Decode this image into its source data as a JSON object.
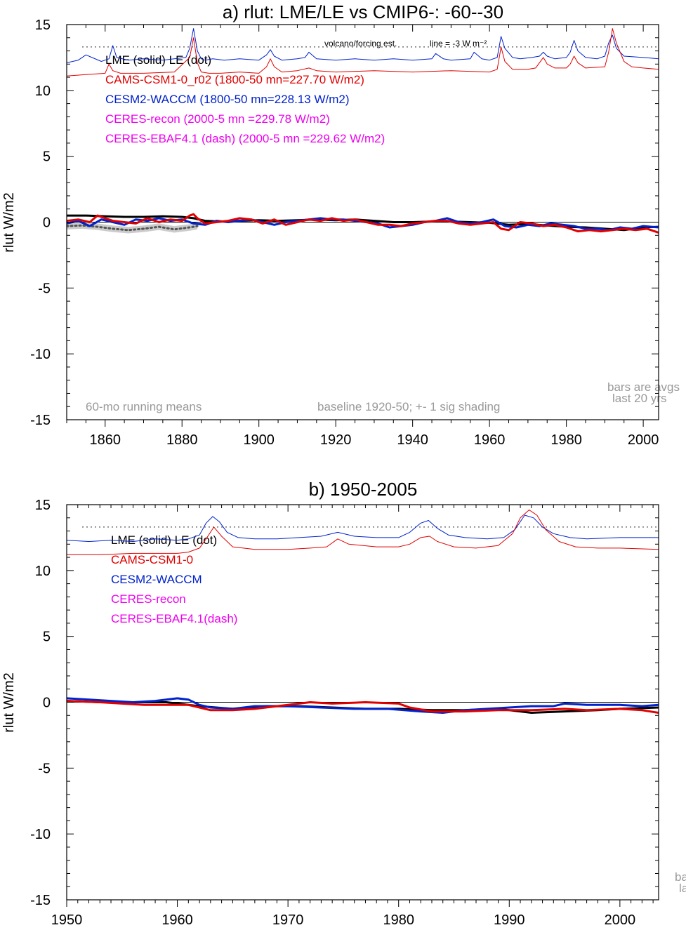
{
  "chart_data": [
    {
      "type": "line",
      "title": "a) rlut: LME/LE vs CMIP6-: -60--30",
      "ylabel": "rlut W/m2",
      "xlim": [
        1850,
        2004
      ],
      "ylim": [
        -15,
        15
      ],
      "xticks": [
        1860,
        1880,
        1900,
        1920,
        1940,
        1960,
        1980,
        2000
      ],
      "yticks": [
        -15,
        -10,
        -5,
        0,
        5,
        10,
        15
      ],
      "grid": false,
      "legend": [
        {
          "text": "LME (solid)   LE (dot)",
          "color": "#000000"
        },
        {
          "text": "CAMS-CSM1-0_r02 (1800-50 mn=227.70 W/m2)",
          "color": "#e00000"
        },
        {
          "text": "CESM2-WACCM (1800-50 mn=228.13 W/m2)",
          "color": "#0022cc"
        },
        {
          "text": "CERES-recon (2000-5 mn =229.78 W/m2)",
          "color": "#ee00ee"
        },
        {
          "text": "CERES-EBAF4.1 (dash) (2000-5 mn =229.62 W/m2)",
          "color": "#ee00ee"
        }
      ],
      "annotations": {
        "volcano_label": "volcano/forcing est.",
        "line_label": "line = -3 W m⁻²",
        "bottom_left": "60-mo running means",
        "bottom_center": "baseline 1920-50; +- 1 sig shading",
        "bars_1": "bars are avgs",
        "bars_2": "last 20 yrs"
      },
      "dotted_ref": 13.3,
      "series": [
        {
          "name": "CESM2-WACCM",
          "role": "forcing",
          "color": "#0022cc",
          "width": 1,
          "x": [
            1850,
            1853,
            1855,
            1859,
            1861,
            1862,
            1863,
            1866,
            1870,
            1875,
            1878,
            1881,
            1882,
            1883,
            1884,
            1885,
            1886,
            1888,
            1891,
            1895,
            1900,
            1902,
            1903,
            1904,
            1906,
            1910,
            1912,
            1913,
            1915,
            1920,
            1925,
            1930,
            1935,
            1940,
            1945,
            1946,
            1948,
            1950,
            1955,
            1956,
            1958,
            1960,
            1962,
            1963,
            1964,
            1966,
            1968,
            1971,
            1973,
            1974,
            1975,
            1977,
            1980,
            1981,
            1982,
            1983,
            1985,
            1988,
            1990,
            1991,
            1992,
            1993,
            1995,
            2000,
            2004
          ],
          "y": [
            12.1,
            12.3,
            12.7,
            12.2,
            12.4,
            13.4,
            12.5,
            12.3,
            12.4,
            12.3,
            12.4,
            12.5,
            13.2,
            14.7,
            13.0,
            12.4,
            12.3,
            12.4,
            12.3,
            12.4,
            12.3,
            12.7,
            13.1,
            12.6,
            12.3,
            12.4,
            12.5,
            12.9,
            12.4,
            12.3,
            12.4,
            12.3,
            12.4,
            12.3,
            12.4,
            12.8,
            12.4,
            12.3,
            12.4,
            12.9,
            12.4,
            12.3,
            12.5,
            14.1,
            13.2,
            12.5,
            12.4,
            12.5,
            12.6,
            12.9,
            12.6,
            12.4,
            12.5,
            12.9,
            13.8,
            13.0,
            12.5,
            12.4,
            12.6,
            13.6,
            14.2,
            13.2,
            12.6,
            12.5,
            12.4
          ]
        },
        {
          "name": "CAMS-CSM1-0",
          "role": "forcing",
          "color": "#e00000",
          "width": 1,
          "x": [
            1850,
            1855,
            1860,
            1861,
            1862,
            1864,
            1870,
            1878,
            1882,
            1883,
            1884,
            1885,
            1887,
            1890,
            1895,
            1900,
            1902,
            1903,
            1904,
            1906,
            1910,
            1913,
            1915,
            1920,
            1930,
            1940,
            1950,
            1960,
            1962,
            1963,
            1964,
            1966,
            1970,
            1972,
            1973,
            1974,
            1975,
            1977,
            1980,
            1981,
            1982,
            1983,
            1985,
            1990,
            1991,
            1992,
            1993,
            1995,
            1997,
            2000,
            2004
          ],
          "y": [
            11.1,
            11.2,
            11.3,
            12.0,
            11.5,
            11.3,
            11.3,
            11.4,
            12.5,
            14.0,
            12.1,
            11.4,
            11.3,
            11.3,
            11.4,
            11.3,
            11.8,
            12.4,
            11.8,
            11.4,
            11.5,
            11.7,
            11.5,
            11.4,
            11.5,
            11.4,
            11.5,
            11.4,
            11.6,
            13.3,
            12.2,
            11.6,
            11.6,
            11.7,
            12.1,
            12.5,
            12.0,
            11.7,
            11.7,
            12.0,
            12.6,
            12.1,
            11.7,
            11.8,
            12.9,
            14.7,
            13.6,
            12.2,
            11.8,
            11.7,
            11.6
          ]
        },
        {
          "name": "LE",
          "role": "anomaly",
          "color": "#555555",
          "width": 3,
          "dash": "2,4",
          "shade": true,
          "x": [
            1850,
            1854,
            1858,
            1862,
            1866,
            1870,
            1874,
            1878,
            1882,
            1884
          ],
          "y": [
            -0.3,
            -0.25,
            -0.35,
            -0.5,
            -0.6,
            -0.5,
            -0.35,
            -0.55,
            -0.4,
            -0.3
          ]
        },
        {
          "name": "LME",
          "role": "anomaly",
          "color": "#000000",
          "width": 3,
          "x": [
            1850,
            1855,
            1860,
            1865,
            1870,
            1875,
            1880,
            1883,
            1886,
            1890,
            1895,
            1900,
            1905,
            1910,
            1915,
            1920,
            1925,
            1930,
            1935,
            1940,
            1945,
            1950,
            1955,
            1960,
            1965,
            1970,
            1975,
            1980,
            1985,
            1990,
            1995,
            2000,
            2004
          ],
          "y": [
            0.5,
            0.5,
            0.45,
            0.4,
            0.4,
            0.45,
            0.4,
            0.3,
            0.1,
            0.05,
            0.1,
            0.15,
            0.1,
            0.15,
            0.2,
            0.15,
            0.2,
            0.1,
            0.0,
            0.0,
            0.05,
            0.05,
            0.0,
            -0.05,
            -0.2,
            -0.15,
            -0.25,
            -0.35,
            -0.4,
            -0.5,
            -0.6,
            -0.4,
            -0.35
          ]
        },
        {
          "name": "CESM2-WACCM",
          "role": "anomaly",
          "color": "#0022cc",
          "width": 3,
          "x": [
            1850,
            1853,
            1856,
            1859,
            1862,
            1865,
            1868,
            1871,
            1874,
            1877,
            1880,
            1883,
            1886,
            1889,
            1892,
            1895,
            1898,
            1901,
            1904,
            1907,
            1910,
            1913,
            1916,
            1919,
            1922,
            1925,
            1928,
            1931,
            1934,
            1937,
            1940,
            1943,
            1946,
            1949,
            1952,
            1955,
            1958,
            1961,
            1964,
            1967,
            1970,
            1973,
            1976,
            1979,
            1982,
            1985,
            1988,
            1991,
            1994,
            1997,
            2000,
            2004
          ],
          "y": [
            -0.1,
            0.1,
            -0.3,
            0.2,
            0.0,
            -0.2,
            0.2,
            0.1,
            0.3,
            0.1,
            0.2,
            -0.1,
            -0.2,
            0.1,
            0.0,
            0.1,
            0.2,
            0.0,
            -0.2,
            0.0,
            0.1,
            0.2,
            0.3,
            0.2,
            0.2,
            0.1,
            0.0,
            -0.1,
            -0.4,
            -0.3,
            -0.2,
            0.0,
            0.1,
            0.3,
            0.0,
            -0.1,
            0.0,
            0.2,
            -0.3,
            -0.4,
            -0.2,
            -0.3,
            -0.1,
            -0.2,
            -0.3,
            -0.5,
            -0.5,
            -0.6,
            -0.4,
            -0.5,
            -0.3,
            -0.4
          ]
        },
        {
          "name": "CAMS-CSM1-0",
          "role": "anomaly",
          "color": "#e00000",
          "width": 3,
          "x": [
            1850,
            1853,
            1856,
            1858,
            1860,
            1862,
            1865,
            1868,
            1871,
            1874,
            1877,
            1880,
            1882,
            1883,
            1884,
            1886,
            1889,
            1892,
            1895,
            1898,
            1901,
            1904,
            1907,
            1910,
            1913,
            1916,
            1919,
            1922,
            1925,
            1928,
            1931,
            1934,
            1937,
            1940,
            1943,
            1946,
            1949,
            1952,
            1955,
            1958,
            1961,
            1963,
            1965,
            1968,
            1971,
            1974,
            1977,
            1980,
            1983,
            1986,
            1989,
            1992,
            1995,
            1998,
            2001,
            2004
          ],
          "y": [
            0.1,
            0.2,
            0.0,
            0.5,
            0.3,
            0.1,
            0.0,
            -0.1,
            0.3,
            0.0,
            0.2,
            0.1,
            0.5,
            0.6,
            0.3,
            -0.1,
            0.0,
            0.1,
            0.3,
            0.2,
            -0.1,
            0.2,
            -0.2,
            0.0,
            0.2,
            0.1,
            0.3,
            0.1,
            0.2,
            0.0,
            -0.2,
            -0.2,
            -0.3,
            -0.1,
            0.0,
            0.1,
            0.1,
            -0.1,
            -0.2,
            -0.1,
            0.0,
            -0.5,
            -0.6,
            0.0,
            -0.1,
            -0.3,
            -0.2,
            -0.4,
            -0.7,
            -0.6,
            -0.7,
            -0.6,
            -0.5,
            -0.6,
            -0.5,
            -0.8
          ]
        }
      ]
    },
    {
      "type": "line",
      "title": "b) 1950-2005",
      "ylabel": "rlut W/m2",
      "xlim": [
        1950,
        2003.5
      ],
      "ylim": [
        -15,
        15
      ],
      "xticks": [
        1950,
        1960,
        1970,
        1980,
        1990,
        2000
      ],
      "yticks": [
        -15,
        -10,
        -5,
        0,
        5,
        10,
        15
      ],
      "grid": false,
      "legend": [
        {
          "text": "LME (solid)      LE (dot)",
          "color": "#000000"
        },
        {
          "text": "CAMS-CSM1-0",
          "color": "#e00000"
        },
        {
          "text": "CESM2-WACCM",
          "color": "#0022cc"
        },
        {
          "text": "CERES-recon",
          "color": "#ee00ee"
        },
        {
          "text": "CERES-EBAF4.1(dash)",
          "color": "#ee00ee"
        }
      ],
      "annotations": {
        "bars_1": "ba",
        "bars_2": "la"
      },
      "dotted_ref": 13.3,
      "series": [
        {
          "name": "CESM2-WACCM",
          "role": "forcing",
          "color": "#0022cc",
          "width": 1,
          "x": [
            1950,
            1952,
            1954,
            1956,
            1958,
            1960,
            1961,
            1962,
            1962.6,
            1963.2,
            1963.8,
            1964.5,
            1965.5,
            1967,
            1969,
            1971,
            1973,
            1974.5,
            1976,
            1978,
            1980,
            1981,
            1982,
            1982.7,
            1983.5,
            1984.5,
            1986,
            1988,
            1989.5,
            1990.5,
            1991.4,
            1992.2,
            1993,
            1994,
            1995.5,
            1997,
            2000,
            2003.5
          ],
          "y": [
            12.3,
            12.2,
            12.3,
            12.2,
            12.4,
            12.3,
            12.4,
            12.7,
            13.6,
            14.1,
            13.7,
            12.9,
            12.5,
            12.4,
            12.4,
            12.5,
            12.6,
            12.9,
            12.6,
            12.5,
            12.5,
            12.9,
            13.6,
            13.8,
            13.2,
            12.7,
            12.5,
            12.4,
            12.5,
            13.1,
            14.2,
            14.0,
            13.3,
            12.8,
            12.5,
            12.4,
            12.5,
            12.5
          ]
        },
        {
          "name": "CAMS-CSM1-0",
          "role": "forcing",
          "color": "#e00000",
          "width": 1,
          "x": [
            1950,
            1953,
            1956,
            1958,
            1960,
            1961,
            1962,
            1962.6,
            1963.3,
            1964,
            1965,
            1967,
            1970,
            1972,
            1973.5,
            1974.5,
            1975.5,
            1978,
            1980,
            1981,
            1982,
            1982.8,
            1983.5,
            1985,
            1987,
            1989,
            1990.3,
            1991,
            1991.8,
            1992.5,
            1993.3,
            1994.5,
            1996,
            1998,
            2000,
            2003.5
          ],
          "y": [
            11.2,
            11.2,
            11.3,
            11.3,
            11.3,
            11.4,
            11.7,
            12.4,
            13.3,
            12.6,
            11.8,
            11.6,
            11.6,
            11.7,
            11.8,
            12.4,
            12.0,
            11.8,
            11.8,
            12.0,
            12.5,
            12.6,
            12.2,
            11.8,
            11.7,
            11.9,
            12.8,
            14.0,
            14.6,
            14.2,
            13.1,
            12.2,
            11.8,
            11.7,
            11.7,
            11.6
          ]
        },
        {
          "name": "LME",
          "role": "anomaly",
          "color": "#000000",
          "width": 3,
          "x": [
            1950,
            1953,
            1956,
            1959,
            1962,
            1965,
            1968,
            1971,
            1974,
            1977,
            1980,
            1983,
            1986,
            1989,
            1992,
            1995,
            1998,
            2000,
            2003.5
          ],
          "y": [
            0.1,
            0.0,
            0.0,
            0.0,
            -0.3,
            -0.5,
            -0.3,
            -0.3,
            -0.4,
            -0.5,
            -0.5,
            -0.6,
            -0.6,
            -0.5,
            -0.8,
            -0.7,
            -0.6,
            -0.5,
            -0.4
          ]
        },
        {
          "name": "CESM2-WACCM",
          "role": "anomaly",
          "color": "#0022cc",
          "width": 3,
          "x": [
            1950,
            1952,
            1954,
            1956,
            1958,
            1960,
            1961,
            1962,
            1963,
            1965,
            1967,
            1970,
            1973,
            1976,
            1979,
            1982,
            1984,
            1986,
            1988,
            1990,
            1992,
            1994,
            1995,
            1997,
            2000,
            2002,
            2003.5
          ],
          "y": [
            0.3,
            0.2,
            0.1,
            0.0,
            0.1,
            0.3,
            0.2,
            -0.2,
            -0.4,
            -0.5,
            -0.3,
            -0.3,
            -0.4,
            -0.5,
            -0.5,
            -0.7,
            -0.8,
            -0.6,
            -0.5,
            -0.4,
            -0.3,
            -0.3,
            -0.1,
            -0.2,
            -0.2,
            -0.3,
            -0.2
          ]
        },
        {
          "name": "CAMS-CSM1-0",
          "role": "anomaly",
          "color": "#e00000",
          "width": 3,
          "x": [
            1950,
            1953,
            1955,
            1957,
            1959,
            1961,
            1962,
            1963,
            1965,
            1967,
            1969,
            1971,
            1972,
            1974,
            1977,
            1980,
            1981,
            1983,
            1986,
            1989,
            1992,
            1995,
            1997,
            2000,
            2002,
            2003.5
          ],
          "y": [
            0.1,
            0.0,
            -0.1,
            -0.2,
            -0.2,
            -0.2,
            -0.4,
            -0.6,
            -0.6,
            -0.5,
            -0.3,
            -0.1,
            0.0,
            -0.1,
            0.0,
            -0.1,
            -0.4,
            -0.7,
            -0.7,
            -0.6,
            -0.6,
            -0.5,
            -0.6,
            -0.5,
            -0.6,
            -0.8
          ]
        }
      ]
    }
  ]
}
